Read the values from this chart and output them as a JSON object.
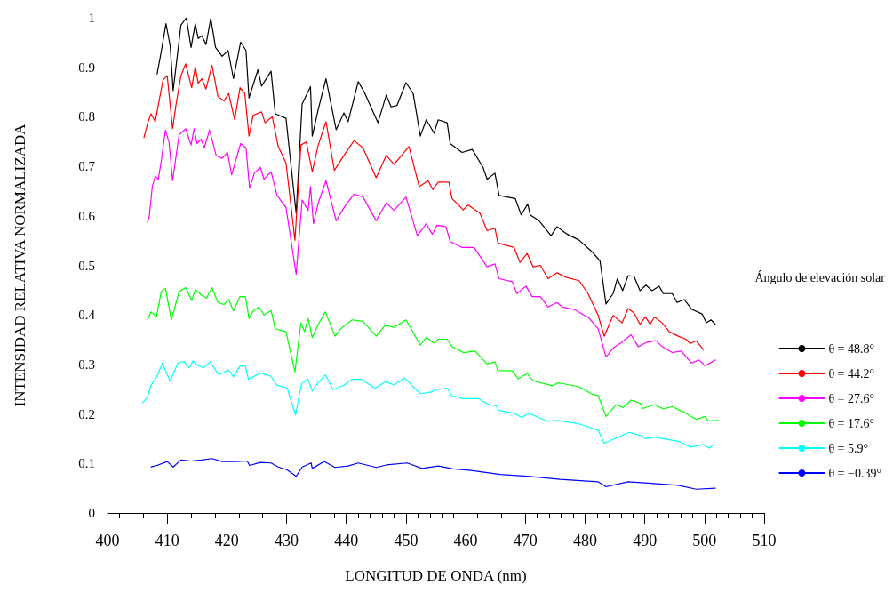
{
  "chart_data": {
    "type": "line",
    "xlabel": "LONGITUD DE ONDA (nm)",
    "ylabel": "INTENSIDAD RELATIVA NORMALIZADA",
    "legend_title": "Ángulo de elevación solar",
    "xlim": [
      400,
      510
    ],
    "xticks": [
      400,
      410,
      420,
      430,
      440,
      450,
      460,
      470,
      480,
      490,
      500,
      510
    ],
    "ylim": [
      0,
      1
    ],
    "yticks": [
      0,
      0.1,
      0.2,
      0.3,
      0.4,
      0.5,
      0.6,
      0.7,
      0.8,
      0.9,
      1
    ],
    "grid": false,
    "legend": "right",
    "marker": "none",
    "line_style": "solid",
    "series": [
      {
        "name": "θ = 48.8°",
        "color": "#000000",
        "x": [
          408.3,
          408.9,
          409.8,
          410.5,
          411.0,
          412.3,
          413.2,
          414.0,
          414.7,
          415.2,
          415.8,
          416.5,
          417.3,
          418.1,
          419.2,
          420.2,
          421.1,
          422.3,
          423.2,
          423.7,
          425.2,
          425.8,
          427.4,
          428.1,
          429.9,
          431.6,
          432.6,
          434.0,
          434.3,
          435.3,
          436.6,
          438.3,
          439.6,
          440.3,
          442.0,
          443.0,
          445.3,
          446.7,
          447.5,
          448.5,
          450.0,
          451.2,
          452.4,
          453.4,
          454.7,
          455.4,
          456.9,
          457.4,
          459.4,
          461.1,
          462.9,
          463.6,
          464.9,
          465.6,
          468.3,
          469.3,
          470.4,
          470.8,
          472.3,
          474.3,
          475.3,
          477.0,
          479.0,
          481.2,
          482.5,
          483.5,
          484.7,
          485.4,
          486.3,
          487.2,
          488.2,
          489.2,
          490.2,
          491.2,
          492.4,
          493.1,
          494.6,
          495.4,
          496.6,
          497.9,
          499.6,
          500.3,
          501.1,
          501.8
        ],
        "values": [
          0.886,
          0.925,
          0.988,
          0.943,
          0.853,
          0.985,
          1.0,
          0.94,
          0.988,
          0.958,
          0.964,
          0.946,
          0.999,
          0.94,
          0.922,
          0.934,
          0.877,
          0.951,
          0.934,
          0.838,
          0.895,
          0.862,
          0.892,
          0.806,
          0.797,
          0.605,
          0.826,
          0.861,
          0.761,
          0.815,
          0.877,
          0.774,
          0.808,
          0.79,
          0.871,
          0.85,
          0.788,
          0.844,
          0.82,
          0.823,
          0.869,
          0.847,
          0.761,
          0.794,
          0.767,
          0.794,
          0.788,
          0.746,
          0.728,
          0.734,
          0.698,
          0.674,
          0.686,
          0.641,
          0.635,
          0.602,
          0.624,
          0.602,
          0.59,
          0.56,
          0.578,
          0.563,
          0.551,
          0.527,
          0.509,
          0.422,
          0.443,
          0.473,
          0.449,
          0.479,
          0.478,
          0.449,
          0.46,
          0.449,
          0.458,
          0.443,
          0.443,
          0.425,
          0.431,
          0.411,
          0.402,
          0.384,
          0.39,
          0.381
        ]
      },
      {
        "name": "θ = 44.2°",
        "color": "#ff0000",
        "x": [
          406.1,
          406.8,
          407.3,
          408.0,
          408.5,
          409.3,
          410.0,
          410.9,
          411.5,
          412.3,
          413.1,
          414.1,
          414.7,
          415.2,
          415.8,
          416.5,
          417.5,
          418.5,
          419.5,
          420.3,
          421.3,
          422.2,
          423.0,
          423.7,
          424.4,
          425.8,
          426.4,
          427.6,
          428.6,
          429.9,
          431.4,
          432.4,
          433.3,
          434.3,
          435.3,
          436.6,
          438.0,
          439.6,
          441.3,
          442.8,
          445.0,
          446.7,
          448.0,
          450.5,
          452.2,
          453.7,
          454.5,
          455.4,
          457.2,
          457.7,
          459.6,
          460.4,
          462.4,
          463.6,
          464.9,
          465.4,
          468.1,
          469.1,
          470.3,
          471.3,
          472.5,
          473.8,
          475.3,
          476.8,
          479.0,
          480.5,
          482.2,
          483.2,
          484.7,
          486.2,
          487.2,
          488.2,
          489.2,
          490.1,
          490.9,
          491.6,
          492.9,
          494.1,
          495.6,
          496.9,
          497.6,
          498.6,
          499.8
        ],
        "values": [
          0.758,
          0.79,
          0.806,
          0.79,
          0.823,
          0.874,
          0.883,
          0.776,
          0.826,
          0.883,
          0.907,
          0.859,
          0.901,
          0.868,
          0.877,
          0.856,
          0.904,
          0.841,
          0.832,
          0.847,
          0.794,
          0.859,
          0.847,
          0.761,
          0.803,
          0.81,
          0.788,
          0.8,
          0.74,
          0.707,
          0.551,
          0.743,
          0.749,
          0.689,
          0.743,
          0.79,
          0.692,
          0.722,
          0.752,
          0.737,
          0.677,
          0.722,
          0.704,
          0.74,
          0.659,
          0.671,
          0.653,
          0.668,
          0.668,
          0.635,
          0.612,
          0.622,
          0.605,
          0.57,
          0.575,
          0.545,
          0.536,
          0.506,
          0.524,
          0.497,
          0.5,
          0.473,
          0.485,
          0.476,
          0.469,
          0.443,
          0.399,
          0.357,
          0.399,
          0.384,
          0.413,
          0.404,
          0.381,
          0.396,
          0.381,
          0.396,
          0.384,
          0.366,
          0.357,
          0.351,
          0.342,
          0.348,
          0.33
        ]
      },
      {
        "name": "θ = 27.6°",
        "color": "#ff00ff",
        "x": [
          406.7,
          407.0,
          407.5,
          408.0,
          408.5,
          409.0,
          409.7,
          410.3,
          410.9,
          412.0,
          413.1,
          414.0,
          414.5,
          415.0,
          415.7,
          416.2,
          417.1,
          418.2,
          419.2,
          420.1,
          420.8,
          422.3,
          423.2,
          423.8,
          424.6,
          425.6,
          426.2,
          427.4,
          428.4,
          429.9,
          431.6,
          432.6,
          433.6,
          434.0,
          434.5,
          435.3,
          436.6,
          438.3,
          439.8,
          441.3,
          442.8,
          445.0,
          446.7,
          448.0,
          450.0,
          451.9,
          453.4,
          454.4,
          455.2,
          456.7,
          457.4,
          459.4,
          461.4,
          463.6,
          464.9,
          465.6,
          467.8,
          468.6,
          470.1,
          471.1,
          472.5,
          473.8,
          475.3,
          476.2,
          478.2,
          480.7,
          482.2,
          483.5,
          484.7,
          486.2,
          487.7,
          488.9,
          490.4,
          491.9,
          492.9,
          494.6,
          496.1,
          497.8,
          499.1,
          500.1,
          501.8
        ],
        "values": [
          0.587,
          0.599,
          0.659,
          0.68,
          0.674,
          0.71,
          0.773,
          0.749,
          0.671,
          0.764,
          0.776,
          0.743,
          0.776,
          0.746,
          0.755,
          0.737,
          0.773,
          0.722,
          0.716,
          0.728,
          0.683,
          0.746,
          0.737,
          0.656,
          0.686,
          0.698,
          0.674,
          0.689,
          0.641,
          0.617,
          0.482,
          0.632,
          0.611,
          0.659,
          0.584,
          0.626,
          0.671,
          0.59,
          0.62,
          0.644,
          0.638,
          0.59,
          0.626,
          0.611,
          0.638,
          0.56,
          0.584,
          0.563,
          0.581,
          0.578,
          0.548,
          0.536,
          0.536,
          0.497,
          0.503,
          0.473,
          0.467,
          0.443,
          0.458,
          0.437,
          0.437,
          0.416,
          0.425,
          0.416,
          0.411,
          0.393,
          0.372,
          0.315,
          0.333,
          0.345,
          0.36,
          0.336,
          0.345,
          0.348,
          0.336,
          0.324,
          0.327,
          0.303,
          0.309,
          0.297,
          0.309
        ]
      },
      {
        "name": "θ = 17.6°",
        "color": "#00ff00",
        "x": [
          406.7,
          407.3,
          408.2,
          409.0,
          409.7,
          410.7,
          412.0,
          413.1,
          414.1,
          414.7,
          415.8,
          416.6,
          417.5,
          418.5,
          419.5,
          420.3,
          421.1,
          422.2,
          423.1,
          423.7,
          424.4,
          425.4,
          426.2,
          427.4,
          428.1,
          429.9,
          431.4,
          432.4,
          433.0,
          433.6,
          434.3,
          435.3,
          436.5,
          438.1,
          439.3,
          441.0,
          442.8,
          445.0,
          446.5,
          448.0,
          450.0,
          452.4,
          453.4,
          454.7,
          455.4,
          456.9,
          457.7,
          459.6,
          461.6,
          463.6,
          464.9,
          465.4,
          467.8,
          468.8,
          470.3,
          471.3,
          474.5,
          475.5,
          479.0,
          481.2,
          482.2,
          483.5,
          485.2,
          486.4,
          487.7,
          489.2,
          489.7,
          491.6,
          493.1,
          494.6,
          496.9,
          498.6,
          500.1,
          500.6,
          502.3
        ],
        "values": [
          0.39,
          0.406,
          0.396,
          0.447,
          0.454,
          0.39,
          0.447,
          0.455,
          0.429,
          0.451,
          0.44,
          0.434,
          0.455,
          0.425,
          0.421,
          0.431,
          0.408,
          0.437,
          0.437,
          0.393,
          0.408,
          0.416,
          0.4,
          0.409,
          0.372,
          0.366,
          0.285,
          0.384,
          0.366,
          0.393,
          0.354,
          0.381,
          0.406,
          0.357,
          0.375,
          0.39,
          0.387,
          0.357,
          0.379,
          0.375,
          0.39,
          0.339,
          0.355,
          0.343,
          0.351,
          0.351,
          0.336,
          0.324,
          0.327,
          0.301,
          0.305,
          0.288,
          0.287,
          0.271,
          0.282,
          0.267,
          0.257,
          0.263,
          0.255,
          0.24,
          0.237,
          0.195,
          0.219,
          0.213,
          0.228,
          0.222,
          0.211,
          0.219,
          0.21,
          0.215,
          0.201,
          0.189,
          0.195,
          0.186,
          0.187
        ]
      },
      {
        "name": "θ = 5.9°",
        "color": "#00ffff",
        "x": [
          405.9,
          406.7,
          407.3,
          408.3,
          409.2,
          409.9,
          410.5,
          411.8,
          412.8,
          413.7,
          414.3,
          415.0,
          416.1,
          417.2,
          418.5,
          419.2,
          420.3,
          421.1,
          422.2,
          423.1,
          423.6,
          424.7,
          425.6,
          427.4,
          428.4,
          430.1,
          431.5,
          432.5,
          433.6,
          434.3,
          435.3,
          436.5,
          437.8,
          439.6,
          441.0,
          442.5,
          444.8,
          446.5,
          448.0,
          449.7,
          452.4,
          454.4,
          454.9,
          456.9,
          457.7,
          459.6,
          462.1,
          463.9,
          465.1,
          465.6,
          468.3,
          469.3,
          470.6,
          473.8,
          475.3,
          479.0,
          482.2,
          483.2,
          484.9,
          487.4,
          489.2,
          490.1,
          491.6,
          493.1,
          495.9,
          497.6,
          499.8,
          500.8,
          501.5
        ],
        "values": [
          0.223,
          0.234,
          0.258,
          0.276,
          0.303,
          0.282,
          0.267,
          0.303,
          0.306,
          0.293,
          0.307,
          0.299,
          0.293,
          0.306,
          0.281,
          0.282,
          0.289,
          0.275,
          0.297,
          0.297,
          0.27,
          0.277,
          0.283,
          0.276,
          0.258,
          0.252,
          0.198,
          0.261,
          0.27,
          0.246,
          0.264,
          0.279,
          0.249,
          0.258,
          0.27,
          0.27,
          0.252,
          0.265,
          0.259,
          0.273,
          0.241,
          0.245,
          0.249,
          0.252,
          0.237,
          0.231,
          0.231,
          0.219,
          0.217,
          0.207,
          0.201,
          0.193,
          0.201,
          0.185,
          0.187,
          0.18,
          0.167,
          0.141,
          0.15,
          0.163,
          0.157,
          0.15,
          0.153,
          0.15,
          0.144,
          0.133,
          0.138,
          0.131,
          0.138
        ]
      },
      {
        "name": "θ = −0.39°",
        "color": "#0000ff",
        "x": [
          407.3,
          408.3,
          410.0,
          411.0,
          412.3,
          414.0,
          415.7,
          417.5,
          419.2,
          421.4,
          423.4,
          423.8,
          425.6,
          427.4,
          428.6,
          430.1,
          431.6,
          432.6,
          434.1,
          434.3,
          436.3,
          438.1,
          440.3,
          442.0,
          445.0,
          446.7,
          450.2,
          452.7,
          455.4,
          457.9,
          460.9,
          465.8,
          470.8,
          475.8,
          482.2,
          483.5,
          487.2,
          491.1,
          495.6,
          498.6,
          501.8
        ],
        "values": [
          0.093,
          0.096,
          0.104,
          0.093,
          0.107,
          0.105,
          0.107,
          0.11,
          0.104,
          0.104,
          0.105,
          0.096,
          0.102,
          0.101,
          0.093,
          0.087,
          0.074,
          0.093,
          0.101,
          0.09,
          0.104,
          0.092,
          0.095,
          0.101,
          0.092,
          0.097,
          0.101,
          0.09,
          0.095,
          0.089,
          0.086,
          0.078,
          0.074,
          0.068,
          0.063,
          0.053,
          0.063,
          0.06,
          0.056,
          0.048,
          0.05
        ]
      }
    ]
  }
}
